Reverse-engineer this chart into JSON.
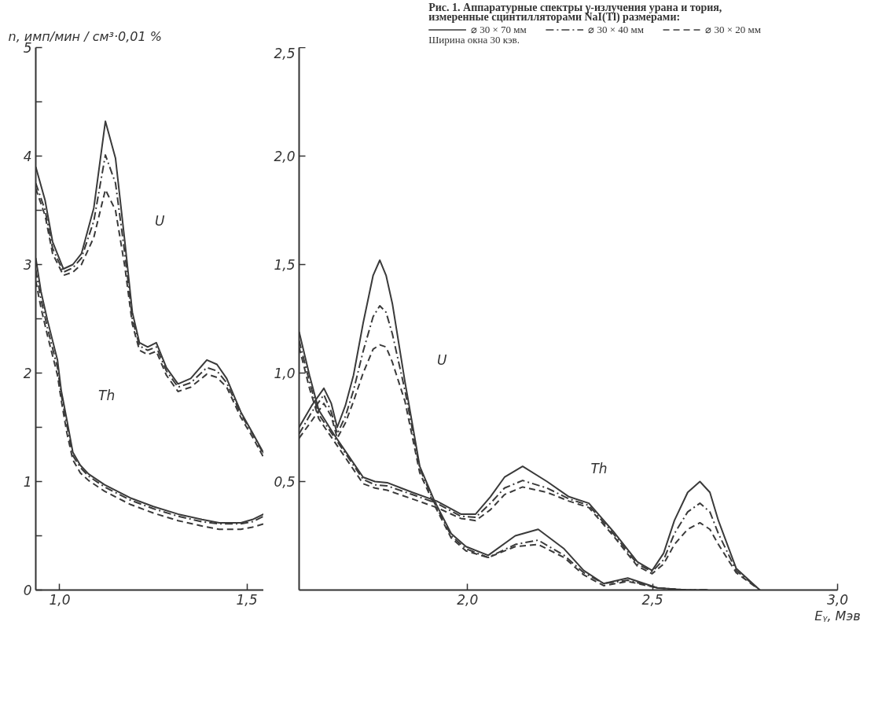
{
  "chart_data": [
    {
      "type": "line",
      "ylabel": "n, имп/мин / см³·0,01 %",
      "xlim": [
        0.936,
        1.545
      ],
      "ylim": [
        0,
        5
      ],
      "xticks": [
        {
          "value": 1.0,
          "label": "1,0"
        },
        {
          "value": 1.5,
          "label": "1,5"
        }
      ],
      "yticks": [
        0,
        {
          "value": 0.5,
          "label": null
        },
        1,
        {
          "value": 1.5,
          "label": null
        },
        2,
        {
          "value": 2.5,
          "label": null
        },
        3,
        {
          "value": 3.5,
          "label": null
        },
        4,
        {
          "value": 4.5,
          "label": null
        },
        5
      ],
      "grid": false,
      "annotations": [
        {
          "text": "U",
          "x": 1.17,
          "y": 3.2
        },
        {
          "text": "Th",
          "x": 1.019,
          "y": 1.59
        }
      ],
      "series": [
        {
          "color": "#3a3a3a",
          "line_style": "solid",
          "x": [
            0.936,
            0.961,
            0.981,
            1.01,
            1.035,
            1.058,
            1.091,
            1.122,
            1.149,
            1.174,
            1.194,
            1.213,
            1.235,
            1.258,
            1.285,
            1.316,
            1.35,
            1.393,
            1.42,
            1.446,
            1.484,
            1.515,
            1.545
          ],
          "values": [
            3.9,
            3.59,
            3.21,
            2.96,
            3.0,
            3.1,
            3.52,
            4.32,
            3.98,
            3.21,
            2.56,
            2.28,
            2.24,
            2.28,
            2.05,
            1.9,
            1.95,
            2.12,
            2.08,
            1.95,
            1.64,
            1.45,
            1.26
          ]
        },
        {
          "color": "#3a3a3a",
          "line_style": "dashdot",
          "x": [
            0.936,
            0.961,
            0.981,
            1.01,
            1.035,
            1.058,
            1.091,
            1.122,
            1.149,
            1.174,
            1.194,
            1.213,
            1.235,
            1.258,
            1.285,
            1.316,
            1.35,
            1.393,
            1.42,
            1.446,
            1.484,
            1.515,
            1.545
          ],
          "values": [
            3.75,
            3.5,
            3.15,
            2.93,
            2.97,
            3.06,
            3.4,
            4.01,
            3.75,
            3.1,
            2.5,
            2.25,
            2.21,
            2.24,
            2.02,
            1.87,
            1.91,
            2.05,
            2.02,
            1.91,
            1.62,
            1.44,
            1.25
          ]
        },
        {
          "color": "#3a3a3a",
          "line_style": "dashed",
          "x": [
            0.936,
            0.961,
            0.981,
            1.01,
            1.035,
            1.058,
            1.091,
            1.122,
            1.149,
            1.174,
            1.194,
            1.213,
            1.235,
            1.258,
            1.285,
            1.316,
            1.35,
            1.393,
            1.42,
            1.446,
            1.484,
            1.515,
            1.545
          ],
          "values": [
            3.7,
            3.45,
            3.1,
            2.9,
            2.93,
            3.0,
            3.25,
            3.69,
            3.5,
            2.98,
            2.45,
            2.21,
            2.17,
            2.2,
            1.98,
            1.83,
            1.87,
            1.99,
            1.96,
            1.87,
            1.59,
            1.41,
            1.22
          ]
        },
        {
          "color": "#3a3a3a",
          "line_style": "solid",
          "x": [
            0.936,
            0.95,
            0.967,
            0.994,
            1.004,
            1.019,
            1.035,
            1.055,
            1.077,
            1.12,
            1.188,
            1.25,
            1.316,
            1.38,
            1.426,
            1.484,
            1.515,
            1.545
          ],
          "values": [
            3.06,
            2.75,
            2.49,
            2.12,
            1.84,
            1.57,
            1.27,
            1.15,
            1.07,
            0.97,
            0.85,
            0.77,
            0.7,
            0.65,
            0.62,
            0.62,
            0.65,
            0.7
          ]
        },
        {
          "color": "#3a3a3a",
          "line_style": "dashdot",
          "x": [
            0.936,
            0.95,
            0.967,
            0.994,
            1.004,
            1.019,
            1.035,
            1.055,
            1.077,
            1.12,
            1.188,
            1.25,
            1.316,
            1.38,
            1.426,
            1.484,
            1.515,
            1.545
          ],
          "values": [
            2.95,
            2.68,
            2.42,
            2.05,
            1.8,
            1.52,
            1.24,
            1.13,
            1.05,
            0.95,
            0.83,
            0.75,
            0.68,
            0.63,
            0.61,
            0.61,
            0.63,
            0.68
          ]
        },
        {
          "color": "#3a3a3a",
          "line_style": "dashed",
          "x": [
            0.936,
            0.95,
            0.967,
            0.994,
            1.004,
            1.019,
            1.035,
            1.055,
            1.077,
            1.12,
            1.188,
            1.25,
            1.316,
            1.38,
            1.426,
            1.484,
            1.515,
            1.545
          ],
          "values": [
            2.85,
            2.6,
            2.35,
            1.98,
            1.75,
            1.45,
            1.2,
            1.08,
            1.01,
            0.91,
            0.79,
            0.71,
            0.64,
            0.59,
            0.56,
            0.56,
            0.58,
            0.61
          ]
        }
      ]
    },
    {
      "type": "line",
      "title": "Рис. 1. Аппаратурные спектры γ-излучения урана и тория, измеренные сцинтилляторами NaI(Tl) размерами:",
      "xlabel": "Eᵧ, Мэв",
      "xlim": [
        1.545,
        3.0
      ],
      "ylim": [
        0,
        2.5
      ],
      "xticks": [
        {
          "value": 2.0,
          "label": "2,0"
        },
        {
          "value": 2.5,
          "label": "2,5"
        },
        {
          "value": 3.0,
          "label": "3,0"
        }
      ],
      "yticks": [
        {
          "value": 0.5,
          "label": "0,5"
        },
        {
          "value": 1.0,
          "label": "1,0"
        },
        {
          "value": 1.5,
          "label": "1,5"
        },
        {
          "value": 2.0,
          "label": "2,0"
        },
        {
          "value": 2.5,
          "label": "2,5"
        }
      ],
      "grid": false,
      "legend": "top right",
      "annotations": [
        {
          "text": "U",
          "x": 1.833,
          "y": 0.96
        },
        {
          "text": "Th",
          "x": 2.248,
          "y": 0.46
        },
        "Ширина окна 30 кэв."
      ],
      "series": [
        {
          "name": "⌀ 30 × 70 мм",
          "color": "#3a3a3a",
          "line_style": "solid",
          "x": [
            1.545,
            1.579,
            1.612,
            1.632,
            1.648,
            1.67,
            1.692,
            1.718,
            1.745,
            1.763,
            1.78,
            1.797,
            1.831,
            1.871,
            1.911,
            1.956,
            1.996,
            2.056,
            2.129,
            2.191,
            2.261,
            2.314,
            2.368,
            2.433,
            2.513,
            2.592,
            2.65
          ],
          "values": [
            0.75,
            0.85,
            0.93,
            0.86,
            0.75,
            0.85,
            0.99,
            1.23,
            1.45,
            1.52,
            1.45,
            1.32,
            0.96,
            0.57,
            0.41,
            0.26,
            0.2,
            0.16,
            0.25,
            0.28,
            0.19,
            0.09,
            0.03,
            0.055,
            0.01,
            0,
            0
          ]
        },
        {
          "name": "⌀ 30 × 40 мм",
          "color": "#3a3a3a",
          "line_style": "dashdot",
          "x": [
            1.545,
            1.579,
            1.612,
            1.632,
            1.648,
            1.67,
            1.692,
            1.718,
            1.745,
            1.763,
            1.78,
            1.797,
            1.831,
            1.871,
            1.911,
            1.956,
            1.996,
            2.056,
            2.129,
            2.191,
            2.261,
            2.314,
            2.368,
            2.433,
            2.513,
            2.592,
            2.65
          ],
          "values": [
            0.72,
            0.82,
            0.9,
            0.82,
            0.72,
            0.8,
            0.92,
            1.1,
            1.26,
            1.31,
            1.28,
            1.18,
            0.92,
            0.56,
            0.4,
            0.25,
            0.19,
            0.15,
            0.21,
            0.23,
            0.16,
            0.08,
            0.03,
            0.045,
            0.01,
            0,
            0
          ]
        },
        {
          "name": "⌀ 30 × 20 мм",
          "color": "#3a3a3a",
          "line_style": "dashed",
          "x": [
            1.545,
            1.579,
            1.612,
            1.632,
            1.648,
            1.67,
            1.692,
            1.718,
            1.745,
            1.763,
            1.78,
            1.797,
            1.831,
            1.871,
            1.911,
            1.956,
            1.996,
            2.056,
            2.129,
            2.191,
            2.261,
            2.314,
            2.368,
            2.433,
            2.513,
            2.592,
            2.65
          ],
          "values": [
            0.7,
            0.78,
            0.86,
            0.8,
            0.7,
            0.77,
            0.87,
            1.0,
            1.11,
            1.13,
            1.12,
            1.05,
            0.87,
            0.54,
            0.39,
            0.24,
            0.18,
            0.15,
            0.2,
            0.21,
            0.15,
            0.07,
            0.02,
            0.04,
            0.01,
            0,
            0
          ]
        },
        {
          "color": "#3a3a3a",
          "line_style": "solid",
          "x": [
            1.545,
            1.573,
            1.598,
            1.638,
            1.678,
            1.718,
            1.75,
            1.783,
            1.851,
            1.917,
            1.982,
            2.022,
            2.062,
            2.1,
            2.149,
            2.215,
            2.274,
            2.328,
            2.394,
            2.459,
            2.499,
            2.53,
            2.559,
            2.595,
            2.628,
            2.655,
            2.678,
            2.726,
            2.79
          ],
          "values": [
            1.19,
            0.99,
            0.83,
            0.72,
            0.62,
            0.52,
            0.5,
            0.495,
            0.45,
            0.41,
            0.35,
            0.35,
            0.43,
            0.52,
            0.57,
            0.5,
            0.43,
            0.4,
            0.27,
            0.13,
            0.09,
            0.17,
            0.32,
            0.45,
            0.5,
            0.45,
            0.32,
            0.1,
            0
          ]
        },
        {
          "color": "#3a3a3a",
          "line_style": "dashdot",
          "x": [
            1.545,
            1.573,
            1.598,
            1.638,
            1.678,
            1.718,
            1.75,
            1.783,
            1.851,
            1.917,
            1.982,
            2.022,
            2.062,
            2.1,
            2.149,
            2.215,
            2.274,
            2.328,
            2.394,
            2.459,
            2.499,
            2.53,
            2.559,
            2.595,
            2.628,
            2.655,
            2.678,
            2.726,
            2.79
          ],
          "values": [
            1.15,
            0.96,
            0.81,
            0.71,
            0.61,
            0.51,
            0.485,
            0.48,
            0.44,
            0.4,
            0.34,
            0.335,
            0.4,
            0.47,
            0.505,
            0.47,
            0.42,
            0.39,
            0.26,
            0.12,
            0.085,
            0.14,
            0.26,
            0.36,
            0.4,
            0.36,
            0.26,
            0.09,
            0
          ]
        },
        {
          "color": "#3a3a3a",
          "line_style": "dashed",
          "x": [
            1.545,
            1.573,
            1.598,
            1.638,
            1.678,
            1.718,
            1.75,
            1.783,
            1.851,
            1.917,
            1.982,
            2.022,
            2.062,
            2.1,
            2.149,
            2.215,
            2.274,
            2.328,
            2.394,
            2.459,
            2.499,
            2.53,
            2.559,
            2.595,
            2.628,
            2.655,
            2.678,
            2.726,
            2.79
          ],
          "values": [
            1.12,
            0.93,
            0.79,
            0.69,
            0.59,
            0.49,
            0.47,
            0.46,
            0.42,
            0.38,
            0.33,
            0.32,
            0.37,
            0.44,
            0.475,
            0.45,
            0.41,
            0.38,
            0.25,
            0.11,
            0.075,
            0.12,
            0.21,
            0.28,
            0.31,
            0.28,
            0.21,
            0.08,
            0
          ]
        }
      ]
    }
  ]
}
